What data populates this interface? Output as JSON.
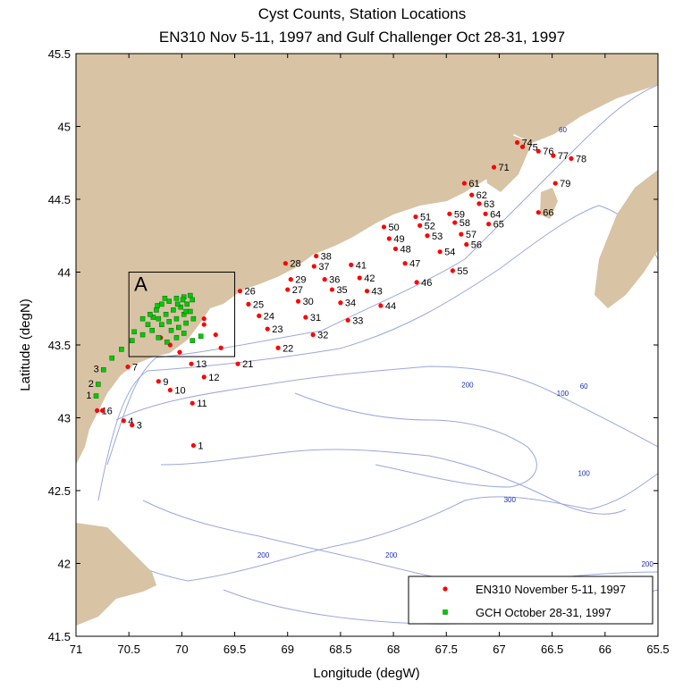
{
  "title_line1": "Cyst Counts, Station Locations",
  "title_line2": "EN310 Nov 5-11, 1997 and Gulf Challenger Oct 28-31, 1997",
  "x_label": "Longitude (degW)",
  "y_label": "Latitude (degN)",
  "x_ticks": [
    "71",
    "70.5",
    "70",
    "69.5",
    "69",
    "68.5",
    "68",
    "67.5",
    "67",
    "66.5",
    "66",
    "65.5"
  ],
  "y_ticks": [
    "45.5",
    "45",
    "44.5",
    "44",
    "43.5",
    "43",
    "42.5",
    "42",
    "41.5"
  ],
  "inset_label": "A",
  "legend": [
    {
      "label": "EN310 November 5-11, 1997",
      "color": "#ff0000",
      "marker": "circle"
    },
    {
      "label": "GCH October 28-31, 1997",
      "color": "#00cc00",
      "marker": "square"
    }
  ],
  "colors": {
    "land": "#d8c3a5",
    "water": "#ffffff",
    "isobath": "#9aa8dc",
    "isobath_label": "#1a2fb4"
  },
  "isobath_labels": [
    {
      "text": "60",
      "lon": 66.4,
      "lat": 44.96
    },
    {
      "text": "60",
      "lon": 66.2,
      "lat": 43.2
    },
    {
      "text": "100",
      "lon": 66.4,
      "lat": 43.15
    },
    {
      "text": "100",
      "lon": 66.2,
      "lat": 42.6
    },
    {
      "text": "200",
      "lon": 67.3,
      "lat": 43.21
    },
    {
      "text": "300",
      "lon": 66.9,
      "lat": 42.42
    },
    {
      "text": "200",
      "lon": 69.23,
      "lat": 42.04
    },
    {
      "text": "200",
      "lon": 68.02,
      "lat": 42.04
    },
    {
      "text": "200",
      "lon": 65.6,
      "lat": 41.98
    }
  ],
  "chart_data": {
    "type": "scatter",
    "xlim": [
      71,
      65.5
    ],
    "ylim": [
      41.5,
      45.5
    ],
    "inset_box": {
      "lon": [
        70.5,
        69.5
      ],
      "lat": [
        43.42,
        44
      ]
    },
    "series": [
      {
        "name": "EN310 November 5-11, 1997",
        "points": [
          {
            "label": "1",
            "lon": 69.89,
            "lat": 42.81
          },
          {
            "label": "11",
            "lon": 69.9,
            "lat": 43.1
          },
          {
            "label": "12",
            "lon": 69.79,
            "lat": 43.28
          },
          {
            "label": "13",
            "lon": 69.91,
            "lat": 43.37
          },
          {
            "label": "21",
            "lon": 69.47,
            "lat": 43.37
          },
          {
            "label": "22",
            "lon": 69.09,
            "lat": 43.48
          },
          {
            "label": "23",
            "lon": 69.19,
            "lat": 43.61
          },
          {
            "label": "24",
            "lon": 69.27,
            "lat": 43.7
          },
          {
            "label": "25",
            "lon": 69.37,
            "lat": 43.78
          },
          {
            "label": "26",
            "lon": 69.45,
            "lat": 43.87
          },
          {
            "label": "27",
            "lon": 69.0,
            "lat": 43.88
          },
          {
            "label": "28",
            "lon": 69.02,
            "lat": 44.06
          },
          {
            "label": "29",
            "lon": 68.97,
            "lat": 43.95
          },
          {
            "label": "30",
            "lon": 68.9,
            "lat": 43.8
          },
          {
            "label": "31",
            "lon": 68.83,
            "lat": 43.69
          },
          {
            "label": "32",
            "lon": 68.76,
            "lat": 43.57
          },
          {
            "label": "33",
            "lon": 68.43,
            "lat": 43.67
          },
          {
            "label": "34",
            "lon": 68.5,
            "lat": 43.79
          },
          {
            "label": "35",
            "lon": 68.58,
            "lat": 43.88
          },
          {
            "label": "36",
            "lon": 68.65,
            "lat": 43.95
          },
          {
            "label": "37",
            "lon": 68.75,
            "lat": 44.04
          },
          {
            "label": "38",
            "lon": 68.73,
            "lat": 44.11
          },
          {
            "label": "41",
            "lon": 68.4,
            "lat": 44.05
          },
          {
            "label": "42",
            "lon": 68.32,
            "lat": 43.96
          },
          {
            "label": "43",
            "lon": 68.25,
            "lat": 43.87
          },
          {
            "label": "44",
            "lon": 68.12,
            "lat": 43.77
          },
          {
            "label": "46",
            "lon": 67.78,
            "lat": 43.93
          },
          {
            "label": "47",
            "lon": 67.89,
            "lat": 44.06
          },
          {
            "label": "48",
            "lon": 67.98,
            "lat": 44.16
          },
          {
            "label": "49",
            "lon": 68.04,
            "lat": 44.23
          },
          {
            "label": "50",
            "lon": 68.09,
            "lat": 44.31
          },
          {
            "label": "51",
            "lon": 67.79,
            "lat": 44.38
          },
          {
            "label": "52",
            "lon": 67.75,
            "lat": 44.32
          },
          {
            "label": "53",
            "lon": 67.68,
            "lat": 44.25
          },
          {
            "label": "54",
            "lon": 67.56,
            "lat": 44.14
          },
          {
            "label": "55",
            "lon": 67.44,
            "lat": 44.01
          },
          {
            "label": "56",
            "lon": 67.31,
            "lat": 44.19
          },
          {
            "label": "57",
            "lon": 67.36,
            "lat": 44.26
          },
          {
            "label": "58",
            "lon": 67.42,
            "lat": 44.34
          },
          {
            "label": "59",
            "lon": 67.47,
            "lat": 44.4
          },
          {
            "label": "61",
            "lon": 67.33,
            "lat": 44.61
          },
          {
            "label": "62",
            "lon": 67.26,
            "lat": 44.53
          },
          {
            "label": "63",
            "lon": 67.19,
            "lat": 44.47
          },
          {
            "label": "64",
            "lon": 67.13,
            "lat": 44.4
          },
          {
            "label": "65",
            "lon": 67.1,
            "lat": 44.33
          },
          {
            "label": "66",
            "lon": 66.63,
            "lat": 44.41
          },
          {
            "label": "71",
            "lon": 67.05,
            "lat": 44.72
          },
          {
            "label": "74",
            "lon": 66.83,
            "lat": 44.89
          },
          {
            "label": "75",
            "lon": 66.78,
            "lat": 44.86
          },
          {
            "label": "76",
            "lon": 66.63,
            "lat": 44.83
          },
          {
            "label": "77",
            "lon": 66.49,
            "lat": 44.8
          },
          {
            "label": "78",
            "lon": 66.32,
            "lat": 44.78
          },
          {
            "label": "79",
            "lon": 66.47,
            "lat": 44.61
          }
        ]
      },
      {
        "name": "GCH October 28-31, 1997",
        "points": [
          {
            "label": "1",
            "lon": 70.81,
            "lat": 43.15
          },
          {
            "label": "2",
            "lon": 70.79,
            "lat": 43.23
          },
          {
            "label": "3",
            "lon": 70.74,
            "lat": 43.33
          },
          {
            "label": "",
            "lon": 70.66,
            "lat": 43.41
          },
          {
            "label": "",
            "lon": 70.57,
            "lat": 43.47
          },
          {
            "label": "",
            "lon": 70.47,
            "lat": 43.53
          },
          {
            "label": "",
            "lon": 70.45,
            "lat": 43.59
          },
          {
            "label": "",
            "lon": 70.37,
            "lat": 43.57
          },
          {
            "label": "",
            "lon": 70.32,
            "lat": 43.64
          },
          {
            "label": "",
            "lon": 70.27,
            "lat": 43.69
          },
          {
            "label": "",
            "lon": 70.24,
            "lat": 43.74
          },
          {
            "label": "",
            "lon": 70.19,
            "lat": 43.78
          },
          {
            "label": "",
            "lon": 70.12,
            "lat": 43.8
          },
          {
            "label": "",
            "lon": 70.05,
            "lat": 43.82
          },
          {
            "label": "",
            "lon": 69.98,
            "lat": 43.83
          },
          {
            "label": "",
            "lon": 69.92,
            "lat": 43.84
          },
          {
            "label": "",
            "lon": 70.37,
            "lat": 43.68
          },
          {
            "label": "",
            "lon": 70.3,
            "lat": 43.71
          },
          {
            "label": "",
            "lon": 70.22,
            "lat": 43.68
          },
          {
            "label": "",
            "lon": 70.15,
            "lat": 43.71
          },
          {
            "label": "",
            "lon": 70.08,
            "lat": 43.74
          },
          {
            "label": "",
            "lon": 70.01,
            "lat": 43.76
          },
          {
            "label": "",
            "lon": 69.95,
            "lat": 43.78
          },
          {
            "label": "",
            "lon": 69.9,
            "lat": 43.81
          },
          {
            "label": "",
            "lon": 70.19,
            "lat": 43.64
          },
          {
            "label": "",
            "lon": 70.12,
            "lat": 43.66
          },
          {
            "label": "",
            "lon": 70.05,
            "lat": 43.68
          },
          {
            "label": "",
            "lon": 69.98,
            "lat": 43.71
          },
          {
            "label": "",
            "lon": 69.92,
            "lat": 43.73
          },
          {
            "label": "",
            "lon": 70.1,
            "lat": 43.6
          },
          {
            "label": "",
            "lon": 70.03,
            "lat": 43.62
          },
          {
            "label": "",
            "lon": 69.96,
            "lat": 43.65
          },
          {
            "label": "",
            "lon": 69.89,
            "lat": 43.68
          },
          {
            "label": "",
            "lon": 70.28,
            "lat": 43.6
          },
          {
            "label": "",
            "lon": 70.22,
            "lat": 43.55
          },
          {
            "label": "",
            "lon": 70.14,
            "lat": 43.52
          },
          {
            "label": "",
            "lon": 70.05,
            "lat": 43.55
          },
          {
            "label": "",
            "lon": 69.98,
            "lat": 43.58
          },
          {
            "label": "",
            "lon": 69.9,
            "lat": 43.53
          },
          {
            "label": "",
            "lon": 69.82,
            "lat": 43.56
          },
          {
            "label": "",
            "lon": 70.23,
            "lat": 43.77
          },
          {
            "label": "",
            "lon": 70.16,
            "lat": 43.82
          },
          {
            "label": "",
            "lon": 70.04,
            "lat": 43.78
          },
          {
            "label": "",
            "lon": 69.96,
            "lat": 43.73
          },
          {
            "label": "",
            "lon": 69.99,
            "lat": 43.81
          }
        ]
      },
      {
        "name": "EN310 November 5-11, 1997 (inshore)",
        "points": [
          {
            "label": "1",
            "lon": 70.8,
            "lat": 43.05
          },
          {
            "label": "6",
            "lon": 70.75,
            "lat": 43.05
          },
          {
            "label": "4",
            "lon": 70.55,
            "lat": 42.98
          },
          {
            "label": "3",
            "lon": 70.47,
            "lat": 42.95
          },
          {
            "label": "7",
            "lon": 70.51,
            "lat": 43.35
          },
          {
            "label": "9",
            "lon": 70.22,
            "lat": 43.25
          },
          {
            "label": "10",
            "lon": 70.11,
            "lat": 43.19
          },
          {
            "label": "",
            "lon": 70.2,
            "lat": 43.55
          },
          {
            "label": "",
            "lon": 70.11,
            "lat": 43.5
          },
          {
            "label": "",
            "lon": 70.02,
            "lat": 43.45
          },
          {
            "label": "",
            "lon": 69.63,
            "lat": 43.48
          },
          {
            "label": "",
            "lon": 69.68,
            "lat": 43.57
          },
          {
            "label": "",
            "lon": 69.79,
            "lat": 43.64
          },
          {
            "label": "",
            "lon": 69.79,
            "lat": 43.68
          }
        ]
      }
    ]
  }
}
